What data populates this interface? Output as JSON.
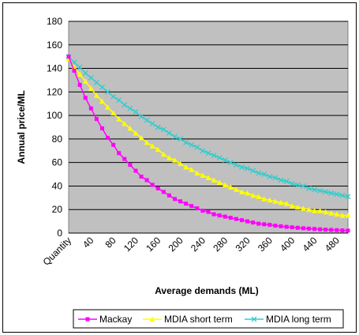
{
  "chart_data": {
    "type": "line",
    "xlabel": "Average demands (ML)",
    "ylabel": "Annual price/ML",
    "ylim": [
      0,
      180
    ],
    "yticks": [
      0,
      20,
      40,
      60,
      80,
      100,
      120,
      140,
      160,
      180
    ],
    "xlim": [
      0,
      500
    ],
    "xticks": [
      {
        "value": 0,
        "label": "Quantity"
      },
      {
        "value": 40,
        "label": "40"
      },
      {
        "value": 80,
        "label": "80"
      },
      {
        "value": 120,
        "label": "120"
      },
      {
        "value": 160,
        "label": "160"
      },
      {
        "value": 200,
        "label": "200"
      },
      {
        "value": 240,
        "label": "240"
      },
      {
        "value": 280,
        "label": "280"
      },
      {
        "value": 320,
        "label": "320"
      },
      {
        "value": 360,
        "label": "360"
      },
      {
        "value": 400,
        "label": "400"
      },
      {
        "value": 440,
        "label": "440"
      },
      {
        "value": 480,
        "label": "480"
      }
    ],
    "grid": true,
    "legend": "bottom",
    "x": [
      0,
      10,
      20,
      30,
      40,
      50,
      60,
      70,
      80,
      90,
      100,
      110,
      120,
      130,
      140,
      150,
      160,
      170,
      180,
      190,
      200,
      210,
      220,
      230,
      240,
      250,
      260,
      270,
      280,
      290,
      300,
      310,
      320,
      330,
      340,
      350,
      360,
      370,
      380,
      390,
      400,
      410,
      420,
      430,
      440,
      450,
      460,
      470,
      480,
      490,
      500
    ],
    "series": [
      {
        "name": "Mackay",
        "color": "#ff00ff",
        "marker": "square",
        "values": [
          150,
          138,
          126,
          115,
          106,
          97,
          89,
          81,
          75,
          68,
          63,
          58,
          53,
          48,
          45,
          41,
          38,
          35,
          32,
          29,
          27,
          25,
          23,
          21,
          19,
          18,
          16,
          15,
          14,
          13,
          12,
          11,
          10,
          9,
          8,
          7.5,
          7,
          6.3,
          5.8,
          5.3,
          4.9,
          4.5,
          4.1,
          3.8,
          3.5,
          3.2,
          2.9,
          2.7,
          2.5,
          2.3,
          2.1
        ]
      },
      {
        "name": "MDIA short term",
        "color": "#ffff00",
        "marker": "triangle",
        "values": [
          148,
          141,
          135,
          129,
          123,
          117,
          112,
          107,
          102,
          97,
          93,
          89,
          85,
          81,
          77,
          74,
          71,
          67,
          64,
          62,
          59,
          56,
          54,
          51,
          49,
          47,
          45,
          43,
          41,
          39,
          37,
          35,
          34,
          32,
          31,
          29,
          28,
          27,
          26,
          25,
          23,
          22,
          21,
          20,
          19,
          19,
          18,
          17,
          16,
          15,
          15
        ]
      },
      {
        "name": "MDIA long term",
        "color": "#33cccc",
        "marker": "x",
        "values": [
          150,
          145,
          141,
          136,
          132,
          128,
          124,
          120,
          116,
          113,
          109,
          106,
          103,
          99,
          96,
          93,
          90,
          88,
          85,
          82,
          80,
          77,
          75,
          73,
          70,
          68,
          66,
          64,
          62,
          60,
          58,
          56,
          55,
          53,
          51,
          50,
          48,
          47,
          45,
          44,
          42,
          41,
          40,
          38,
          37,
          36,
          35,
          34,
          33,
          32,
          31
        ]
      }
    ]
  },
  "colors": {
    "plot_background": "#c0c0c0",
    "gridline": "#000000"
  }
}
